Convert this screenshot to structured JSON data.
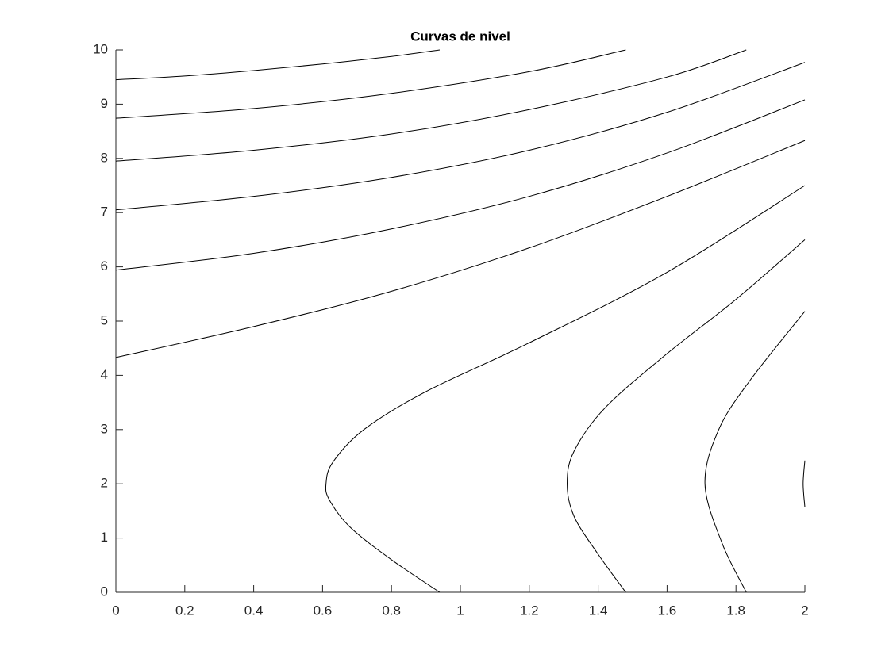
{
  "chart_data": {
    "type": "contour",
    "title": "Curvas de nivel",
    "color": "#000000",
    "xlim": [
      0,
      2
    ],
    "ylim": [
      0,
      10
    ],
    "xticks": [
      0,
      0.2,
      0.4,
      0.6,
      0.8,
      1,
      1.2,
      1.4,
      1.6,
      1.8,
      2
    ],
    "yticks": [
      0,
      1,
      2,
      3,
      4,
      5,
      6,
      7,
      8,
      9,
      10
    ],
    "series": [
      {
        "x": [
          0,
          0.2,
          0.4,
          0.6,
          0.8,
          0.94
        ],
        "values": [
          9.45,
          9.52,
          9.62,
          9.74,
          9.88,
          10
        ]
      },
      {
        "x": [
          0,
          0.4,
          0.8,
          1.2,
          1.48
        ],
        "values": [
          8.74,
          8.92,
          9.2,
          9.6,
          10
        ]
      },
      {
        "x": [
          0,
          0.4,
          0.8,
          1.2,
          1.6,
          1.83
        ],
        "values": [
          7.95,
          8.15,
          8.45,
          8.9,
          9.5,
          10
        ]
      },
      {
        "x": [
          0,
          0.4,
          0.8,
          1.2,
          1.6,
          2
        ],
        "values": [
          7.05,
          7.3,
          7.65,
          8.15,
          8.85,
          9.77
        ]
      },
      {
        "x": [
          0,
          0.4,
          0.8,
          1.2,
          1.6,
          2
        ],
        "values": [
          5.94,
          6.25,
          6.7,
          7.3,
          8.1,
          9.08
        ]
      },
      {
        "x": [
          0,
          0.4,
          0.8,
          1.2,
          1.6,
          2
        ],
        "values": [
          4.33,
          4.9,
          5.55,
          6.35,
          7.3,
          8.33
        ]
      },
      {
        "x": [
          0.94,
          0.8,
          0.68,
          0.62,
          0.61,
          0.63,
          0.72,
          0.9,
          1.2,
          1.6,
          2
        ],
        "values": [
          0,
          0.6,
          1.2,
          1.7,
          2,
          2.4,
          3,
          3.7,
          4.6,
          5.9,
          7.5
        ]
      },
      {
        "x": [
          1.48,
          1.4,
          1.33,
          1.31,
          1.33,
          1.42,
          1.6,
          1.8,
          2
        ],
        "values": [
          0,
          0.7,
          1.4,
          2,
          2.6,
          3.4,
          4.4,
          5.4,
          6.5
        ]
      },
      {
        "x": [
          1.83,
          1.76,
          1.71,
          1.75,
          1.84,
          2
        ],
        "values": [
          0,
          0.9,
          2,
          3,
          3.9,
          5.18
        ]
      },
      {
        "x": [
          2,
          1.995,
          2
        ],
        "values": [
          2.43,
          2,
          1.57
        ]
      }
    ]
  }
}
